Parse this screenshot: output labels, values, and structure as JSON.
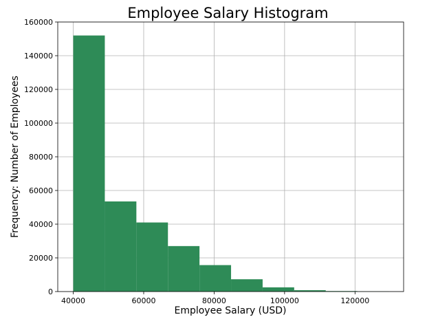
{
  "chart_data": {
    "type": "bar",
    "title": "Employee Salary Histogram",
    "xlabel": "Employee Salary (USD)",
    "ylabel": "Frequency: Number of Employees",
    "xlim": [
      35600,
      133800
    ],
    "ylim": [
      0,
      160000
    ],
    "xticks": [
      40000,
      60000,
      80000,
      100000,
      120000
    ],
    "yticks": [
      0,
      20000,
      40000,
      60000,
      80000,
      100000,
      120000,
      140000,
      160000
    ],
    "grid": true,
    "bar_color": "#2e8b57",
    "bins": [
      {
        "start": 40000,
        "end": 48961,
        "value": 152000
      },
      {
        "start": 48961,
        "end": 57922,
        "value": 53500
      },
      {
        "start": 57922,
        "end": 66883,
        "value": 41000
      },
      {
        "start": 66883,
        "end": 75844,
        "value": 27000
      },
      {
        "start": 75844,
        "end": 84805,
        "value": 15700
      },
      {
        "start": 84805,
        "end": 93766,
        "value": 7300
      },
      {
        "start": 93766,
        "end": 102727,
        "value": 2500
      },
      {
        "start": 102727,
        "end": 111688,
        "value": 800
      },
      {
        "start": 111688,
        "end": 120649,
        "value": 300
      },
      {
        "start": 120649,
        "end": 129610,
        "value": 100
      }
    ]
  }
}
